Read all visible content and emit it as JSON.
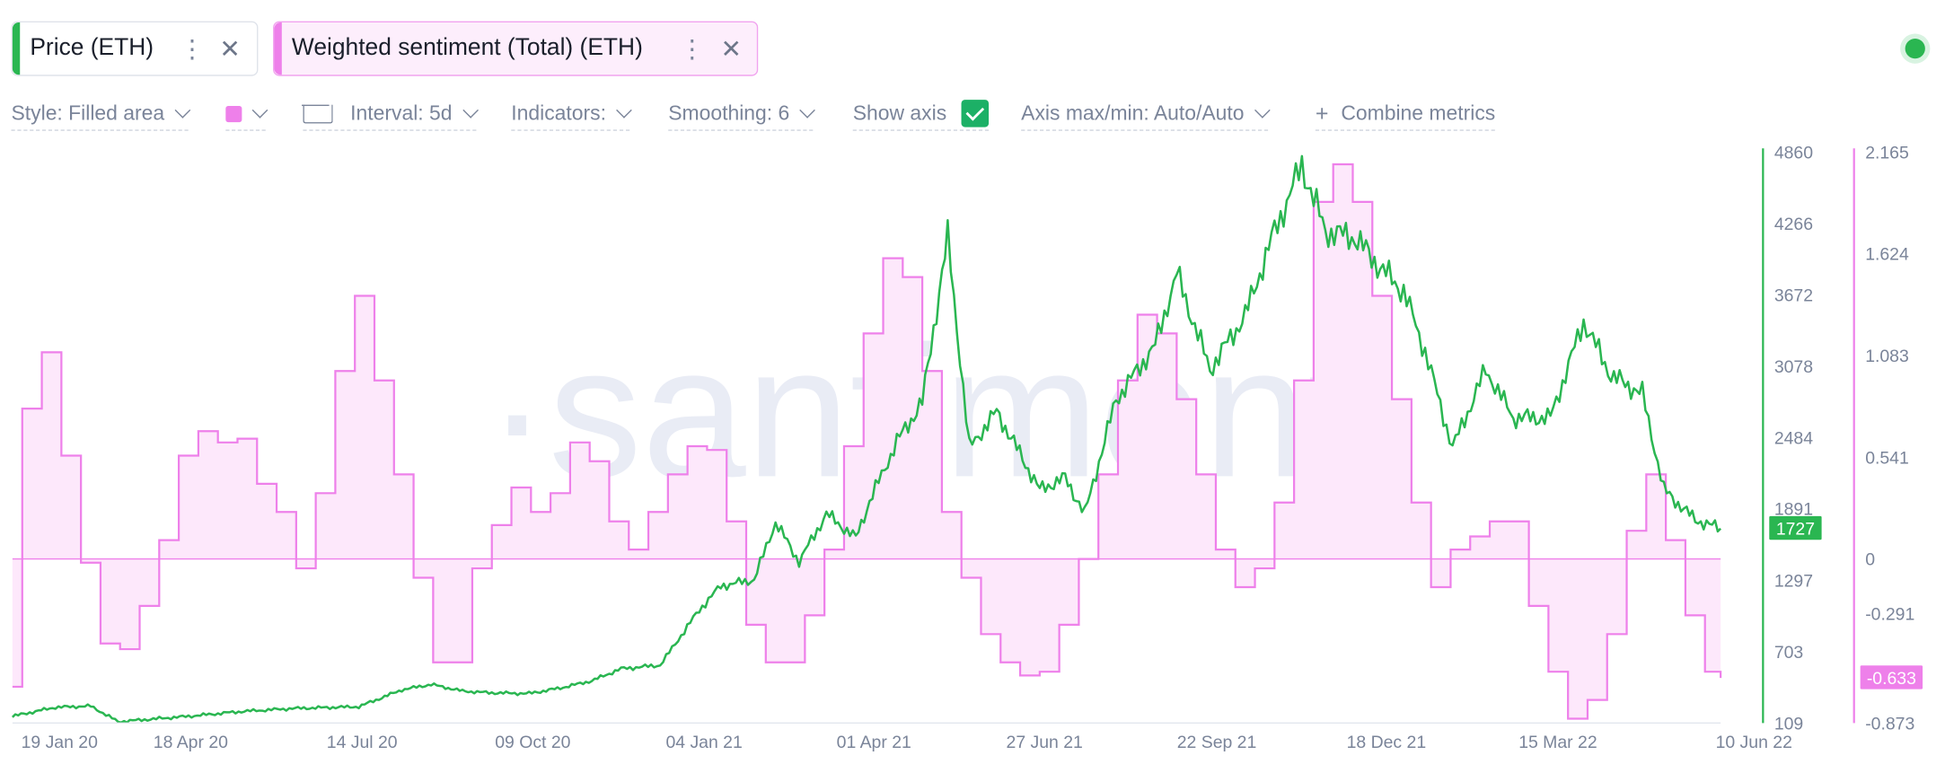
{
  "metrics": [
    {
      "label": "Price (ETH)",
      "color": "#2ab651"
    },
    {
      "label": "Weighted sentiment (Total) (ETH)",
      "color": "#ee80ea"
    }
  ],
  "icons": {
    "menu": "vertical-dots-icon",
    "close": "close-icon",
    "status": "online-status-icon"
  },
  "toolbar": {
    "style": "Style: Filled area",
    "interval": "Interval: 5d",
    "indicators": "Indicators:",
    "smoothing": "Smoothing: 6",
    "show_axis": "Show axis",
    "show_axis_checked": true,
    "axis_maxmin": "Axis max/min: Auto/Auto",
    "combine": "Combine metrics",
    "swatch_color": "#ee80ea"
  },
  "watermark": "·santiment·",
  "chart_data": {
    "type": "area",
    "x_ticks": [
      "19 Jan 20",
      "18 Apr 20",
      "14 Jul 20",
      "09 Oct 20",
      "04 Jan 21",
      "01 Apr 21",
      "27 Jun 21",
      "22 Sep 21",
      "18 Dec 21",
      "15 Mar 22",
      "10 Jun 22"
    ],
    "x_range": [
      "2020-01-19",
      "2022-06-10"
    ],
    "series": [
      {
        "name": "Price (ETH)",
        "kind": "line",
        "axis": "right-1",
        "color": "#2ab651",
        "last_value": "1727",
        "ylim": [
          109,
          4860
        ],
        "ticks": [
          "4860",
          "4266",
          "3672",
          "3078",
          "2484",
          "1891",
          "1297",
          "703",
          "109"
        ],
        "points": [
          [
            "2020-01-19",
            165
          ],
          [
            "2020-02-10",
            240
          ],
          [
            "2020-02-28",
            250
          ],
          [
            "2020-03-13",
            120
          ],
          [
            "2020-04-18",
            165
          ],
          [
            "2020-05-15",
            205
          ],
          [
            "2020-06-10",
            230
          ],
          [
            "2020-07-14",
            245
          ],
          [
            "2020-08-05",
            385
          ],
          [
            "2020-08-20",
            430
          ],
          [
            "2020-09-05",
            375
          ],
          [
            "2020-09-20",
            360
          ],
          [
            "2020-10-09",
            355
          ],
          [
            "2020-10-25",
            400
          ],
          [
            "2020-11-10",
            460
          ],
          [
            "2020-11-25",
            560
          ],
          [
            "2020-12-15",
            590
          ],
          [
            "2021-01-04",
            1050
          ],
          [
            "2021-01-15",
            1250
          ],
          [
            "2021-02-01",
            1300
          ],
          [
            "2021-02-12",
            1780
          ],
          [
            "2021-02-24",
            1450
          ],
          [
            "2021-03-10",
            1850
          ],
          [
            "2021-03-25",
            1650
          ],
          [
            "2021-04-01",
            1950
          ],
          [
            "2021-04-15",
            2450
          ],
          [
            "2021-04-28",
            2780
          ],
          [
            "2021-05-11",
            4150
          ],
          [
            "2021-05-22",
            2400
          ],
          [
            "2021-06-05",
            2700
          ],
          [
            "2021-06-27",
            2050
          ],
          [
            "2021-07-10",
            2150
          ],
          [
            "2021-07-20",
            1850
          ],
          [
            "2021-08-05",
            2800
          ],
          [
            "2021-08-25",
            3250
          ],
          [
            "2021-09-05",
            3850
          ],
          [
            "2021-09-22",
            3050
          ],
          [
            "2021-10-10",
            3500
          ],
          [
            "2021-10-25",
            4200
          ],
          [
            "2021-11-08",
            4750
          ],
          [
            "2021-11-20",
            4200
          ],
          [
            "2021-12-05",
            4150
          ],
          [
            "2021-12-18",
            3900
          ],
          [
            "2021-12-30",
            3700
          ],
          [
            "2022-01-10",
            3200
          ],
          [
            "2022-01-24",
            2400
          ],
          [
            "2022-02-10",
            3050
          ],
          [
            "2022-02-24",
            2650
          ],
          [
            "2022-03-15",
            2650
          ],
          [
            "2022-04-01",
            3450
          ],
          [
            "2022-04-15",
            3000
          ],
          [
            "2022-05-01",
            2850
          ],
          [
            "2022-05-12",
            2050
          ],
          [
            "2022-05-28",
            1800
          ],
          [
            "2022-06-10",
            1727
          ]
        ]
      },
      {
        "name": "Weighted sentiment (Total) (ETH)",
        "kind": "filled-step-area",
        "axis": "right-2",
        "color": "#ee80ea",
        "fill": "#fde8fb",
        "last_value": "-0.633",
        "ylim": [
          -0.873,
          2.165
        ],
        "ticks": [
          "2.165",
          "1.624",
          "1.083",
          "0.541",
          "0",
          "-0.291",
          "-0.873"
        ],
        "points": [
          [
            "2020-01-19",
            -0.68
          ],
          [
            "2020-01-24",
            0.8
          ],
          [
            "2020-02-03",
            1.1
          ],
          [
            "2020-02-13",
            0.55
          ],
          [
            "2020-02-23",
            -0.02
          ],
          [
            "2020-03-04",
            -0.45
          ],
          [
            "2020-03-14",
            -0.48
          ],
          [
            "2020-03-24",
            -0.25
          ],
          [
            "2020-04-03",
            0.1
          ],
          [
            "2020-04-13",
            0.55
          ],
          [
            "2020-04-23",
            0.68
          ],
          [
            "2020-05-03",
            0.62
          ],
          [
            "2020-05-13",
            0.64
          ],
          [
            "2020-05-23",
            0.4
          ],
          [
            "2020-06-02",
            0.25
          ],
          [
            "2020-06-12",
            -0.05
          ],
          [
            "2020-06-22",
            0.35
          ],
          [
            "2020-07-02",
            1.0
          ],
          [
            "2020-07-12",
            1.4
          ],
          [
            "2020-07-22",
            0.95
          ],
          [
            "2020-08-01",
            0.45
          ],
          [
            "2020-08-11",
            -0.1
          ],
          [
            "2020-08-21",
            -0.55
          ],
          [
            "2020-08-31",
            -0.55
          ],
          [
            "2020-09-10",
            -0.05
          ],
          [
            "2020-09-20",
            0.18
          ],
          [
            "2020-09-30",
            0.38
          ],
          [
            "2020-10-10",
            0.25
          ],
          [
            "2020-10-20",
            0.35
          ],
          [
            "2020-10-30",
            0.62
          ],
          [
            "2020-11-09",
            0.52
          ],
          [
            "2020-11-19",
            0.2
          ],
          [
            "2020-11-29",
            0.05
          ],
          [
            "2020-12-09",
            0.25
          ],
          [
            "2020-12-19",
            0.45
          ],
          [
            "2020-12-29",
            0.6
          ],
          [
            "2021-01-08",
            0.58
          ],
          [
            "2021-01-18",
            0.2
          ],
          [
            "2021-01-28",
            -0.35
          ],
          [
            "2021-02-07",
            -0.55
          ],
          [
            "2021-02-17",
            -0.55
          ],
          [
            "2021-02-27",
            -0.3
          ],
          [
            "2021-03-09",
            0.05
          ],
          [
            "2021-03-19",
            0.6
          ],
          [
            "2021-03-29",
            1.2
          ],
          [
            "2021-04-08",
            1.6
          ],
          [
            "2021-04-18",
            1.5
          ],
          [
            "2021-04-28",
            1.0
          ],
          [
            "2021-05-08",
            0.25
          ],
          [
            "2021-05-18",
            -0.1
          ],
          [
            "2021-05-28",
            -0.4
          ],
          [
            "2021-06-07",
            -0.55
          ],
          [
            "2021-06-17",
            -0.62
          ],
          [
            "2021-06-27",
            -0.6
          ],
          [
            "2021-07-07",
            -0.35
          ],
          [
            "2021-07-17",
            0.0
          ],
          [
            "2021-07-27",
            0.45
          ],
          [
            "2021-08-06",
            0.95
          ],
          [
            "2021-08-16",
            1.3
          ],
          [
            "2021-08-26",
            1.2
          ],
          [
            "2021-09-05",
            0.85
          ],
          [
            "2021-09-15",
            0.45
          ],
          [
            "2021-09-25",
            0.05
          ],
          [
            "2021-10-05",
            -0.15
          ],
          [
            "2021-10-15",
            -0.05
          ],
          [
            "2021-10-25",
            0.3
          ],
          [
            "2021-11-04",
            0.95
          ],
          [
            "2021-11-14",
            1.9
          ],
          [
            "2021-11-24",
            2.1
          ],
          [
            "2021-12-04",
            1.9
          ],
          [
            "2021-12-14",
            1.4
          ],
          [
            "2021-12-24",
            0.85
          ],
          [
            "2022-01-03",
            0.3
          ],
          [
            "2022-01-13",
            -0.15
          ],
          [
            "2022-01-23",
            0.05
          ],
          [
            "2022-02-02",
            0.12
          ],
          [
            "2022-02-12",
            0.2
          ],
          [
            "2022-02-22",
            0.2
          ],
          [
            "2022-03-04",
            -0.25
          ],
          [
            "2022-03-14",
            -0.6
          ],
          [
            "2022-03-24",
            -0.85
          ],
          [
            "2022-04-03",
            -0.75
          ],
          [
            "2022-04-13",
            -0.4
          ],
          [
            "2022-04-23",
            0.15
          ],
          [
            "2022-05-03",
            0.45
          ],
          [
            "2022-05-13",
            0.1
          ],
          [
            "2022-05-23",
            -0.3
          ],
          [
            "2022-06-02",
            -0.6
          ],
          [
            "2022-06-10",
            -0.633
          ]
        ]
      }
    ]
  }
}
